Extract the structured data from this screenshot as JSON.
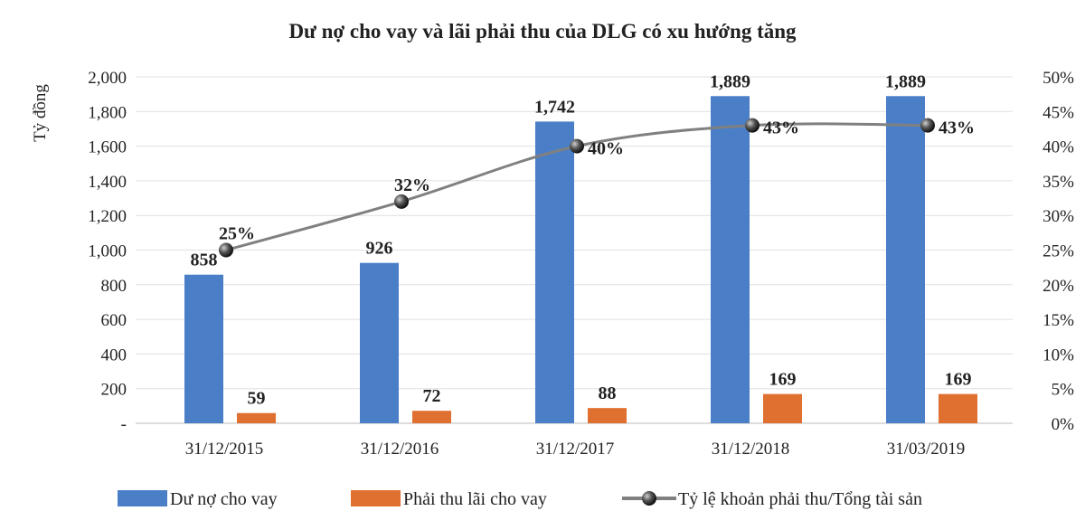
{
  "chart_data": {
    "type": "bar",
    "title": "Dư nợ cho vay và lãi phải thu của DLG có xu hướng tăng",
    "ylabel": "Tỷ đồng",
    "ylabel_right": "",
    "xlabel": "",
    "categories": [
      "31/12/2015",
      "31/12/2016",
      "31/12/2017",
      "31/12/2018",
      "31/03/2019"
    ],
    "ylim": [
      0,
      2000
    ],
    "y_ticks": [
      "-",
      "200",
      "400",
      "600",
      "800",
      "1,000",
      "1,200",
      "1,400",
      "1,600",
      "1,800",
      "2,000"
    ],
    "y2lim": [
      0,
      0.5
    ],
    "y2_ticks": [
      "0%",
      "5%",
      "10%",
      "15%",
      "20%",
      "25%",
      "30%",
      "35%",
      "40%",
      "45%",
      "50%"
    ],
    "grid": true,
    "legend_position": "bottom",
    "series": [
      {
        "name": "Dư nợ cho vay",
        "type": "bar",
        "axis": "left",
        "color": "#4a7fc8",
        "values": [
          858,
          926,
          1742,
          1889,
          1889
        ],
        "labels": [
          "858",
          "926",
          "1,742",
          "1,889",
          "1,889"
        ]
      },
      {
        "name": "Phải thu lãi cho vay",
        "type": "bar",
        "axis": "left",
        "color": "#e0702f",
        "values": [
          59,
          72,
          88,
          169,
          169
        ],
        "labels": [
          "59",
          "72",
          "88",
          "169",
          "169"
        ]
      },
      {
        "name": "Tỷ lệ khoản phải thu/Tổng tài sản",
        "type": "line",
        "axis": "right",
        "color": "#808080",
        "values": [
          0.25,
          0.32,
          0.4,
          0.43,
          0.43
        ],
        "labels": [
          "25%",
          "32%",
          "40%",
          "43%",
          "43%"
        ]
      }
    ]
  }
}
